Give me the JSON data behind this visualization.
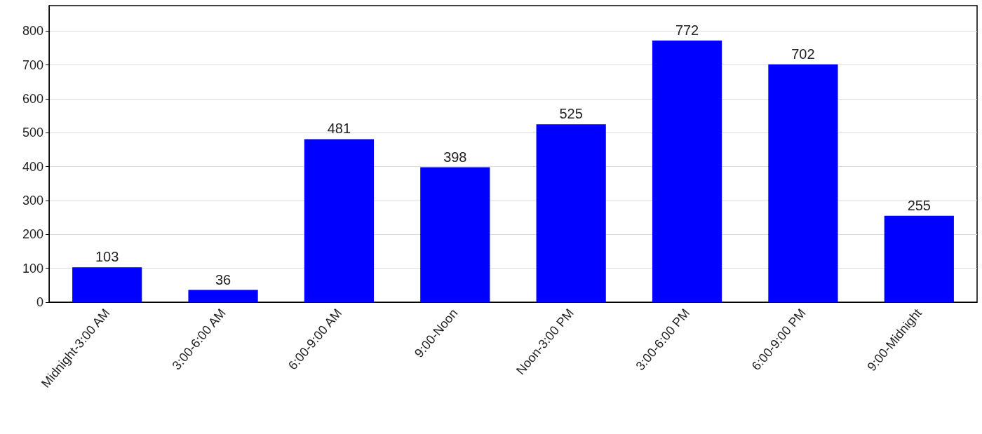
{
  "chart_data": {
    "type": "bar",
    "categories": [
      "Midnight-3:00 AM",
      "3:00-6:00 AM",
      "6:00-9:00 AM",
      "9:00-Noon",
      "Noon-3:00 PM",
      "3:00-6:00 PM",
      "6:00-9:00 PM",
      "9:00-Midnight"
    ],
    "values": [
      103,
      36,
      481,
      398,
      525,
      772,
      702,
      255
    ],
    "color": "#0000ff",
    "ylim": [
      0,
      875
    ],
    "yticks": [
      0,
      100,
      200,
      300,
      400,
      500,
      600,
      700,
      800
    ],
    "grid": "y",
    "data_labels": true
  }
}
